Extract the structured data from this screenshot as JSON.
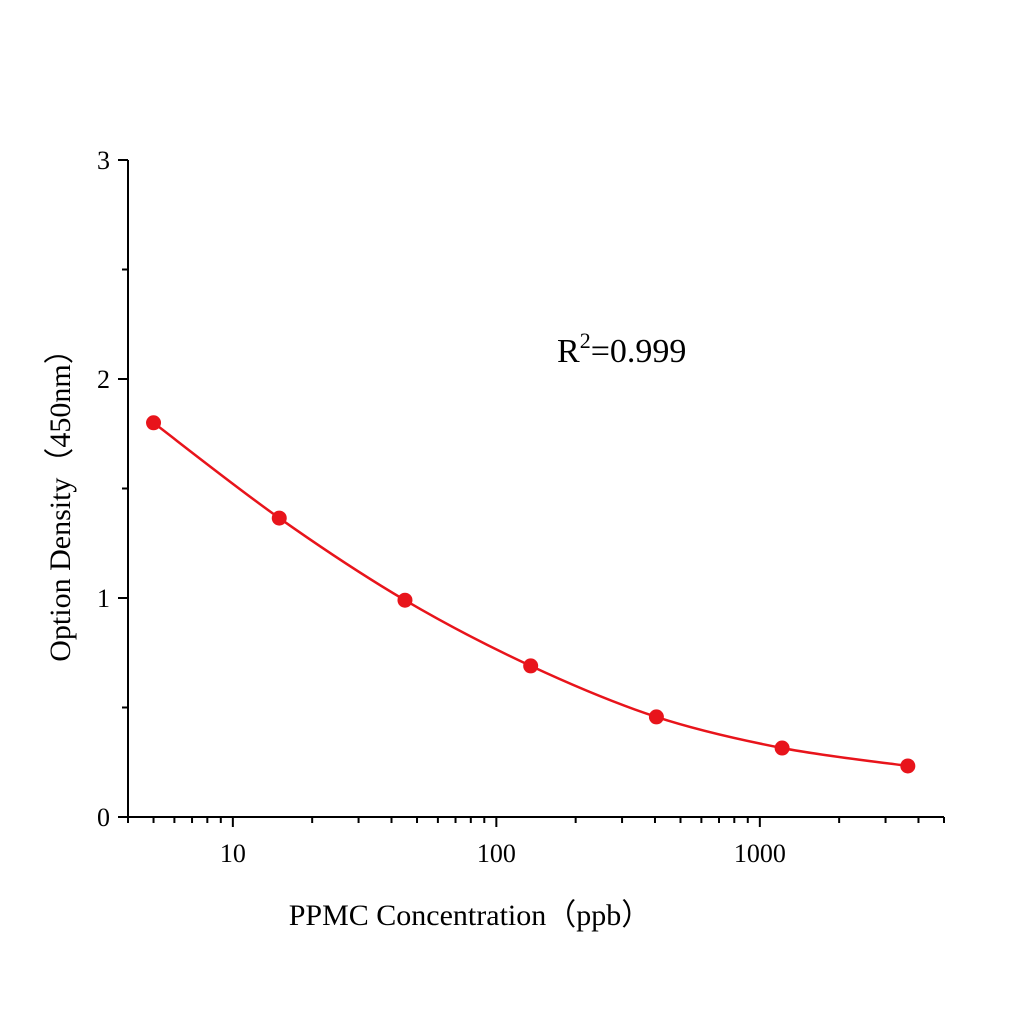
{
  "chart_data": {
    "type": "line",
    "title": "",
    "xlabel": "PPMC  Concentration（ppb）",
    "ylabel": "Option Density（450nm）",
    "x_scale": "log",
    "xlim": [
      4,
      5000
    ],
    "ylim": [
      0,
      3
    ],
    "x_ticks": [
      10,
      100,
      1000
    ],
    "x_tick_labels": [
      "10",
      "100",
      "1000"
    ],
    "y_ticks": [
      0,
      1,
      2,
      3
    ],
    "y_tick_labels": [
      "0",
      "1",
      "2",
      "3"
    ],
    "grid": false,
    "annotation": {
      "base": "R",
      "sup": "2",
      "rest": "=0.999"
    },
    "series": [
      {
        "color": "#e8141b",
        "marker": "circle",
        "x": [
          5,
          15,
          45,
          135,
          405,
          1215,
          3645
        ],
        "y": [
          1.8,
          1.365,
          0.99,
          0.69,
          0.457,
          0.315,
          0.233
        ]
      }
    ]
  }
}
